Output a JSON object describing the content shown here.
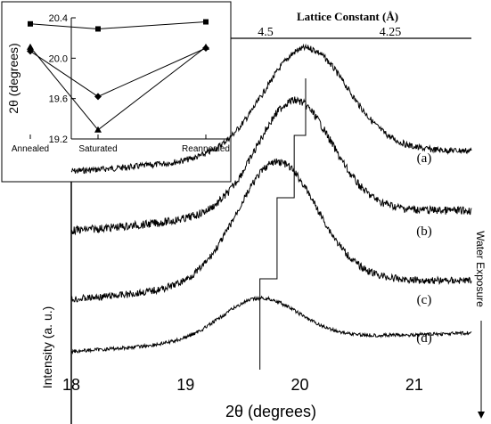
{
  "chart_data": [
    {
      "type": "line",
      "xlabel": "2θ (degrees)",
      "ylabel": "Intensity (a. u.)",
      "xlim": [
        18,
        21.5
      ],
      "x_ticks": [
        "18",
        "19",
        "20",
        "21"
      ],
      "top_axis": {
        "label": "Lattice Constant (Å)",
        "ticks": [
          "4.5",
          "4.25"
        ]
      },
      "right_annotation": "Water Exposure",
      "grid": false,
      "series": [
        {
          "name": "(a)",
          "peak_x": 20.05
        },
        {
          "name": "(b)",
          "peak_x": 19.95
        },
        {
          "name": "(c)",
          "peak_x": 19.8
        },
        {
          "name": "(d)",
          "peak_x": 19.65
        }
      ],
      "staircase_x": [
        20.05,
        19.95,
        19.8,
        19.65
      ]
    },
    {
      "type": "line",
      "ylabel": "2θ (degrees)",
      "categories": [
        "Annealed",
        "Saturated",
        "Reannealed"
      ],
      "ylim": [
        19.2,
        20.4
      ],
      "y_ticks": [
        "19.2",
        "19.6",
        "20.0",
        "20.4"
      ],
      "grid": false,
      "series": [
        {
          "marker": "square",
          "values": [
            20.34,
            20.29,
            20.36
          ]
        },
        {
          "marker": "diamond",
          "values": [
            20.07,
            19.62,
            20.1
          ]
        },
        {
          "marker": "triangle",
          "values": [
            20.11,
            19.29,
            20.11
          ]
        }
      ]
    }
  ]
}
